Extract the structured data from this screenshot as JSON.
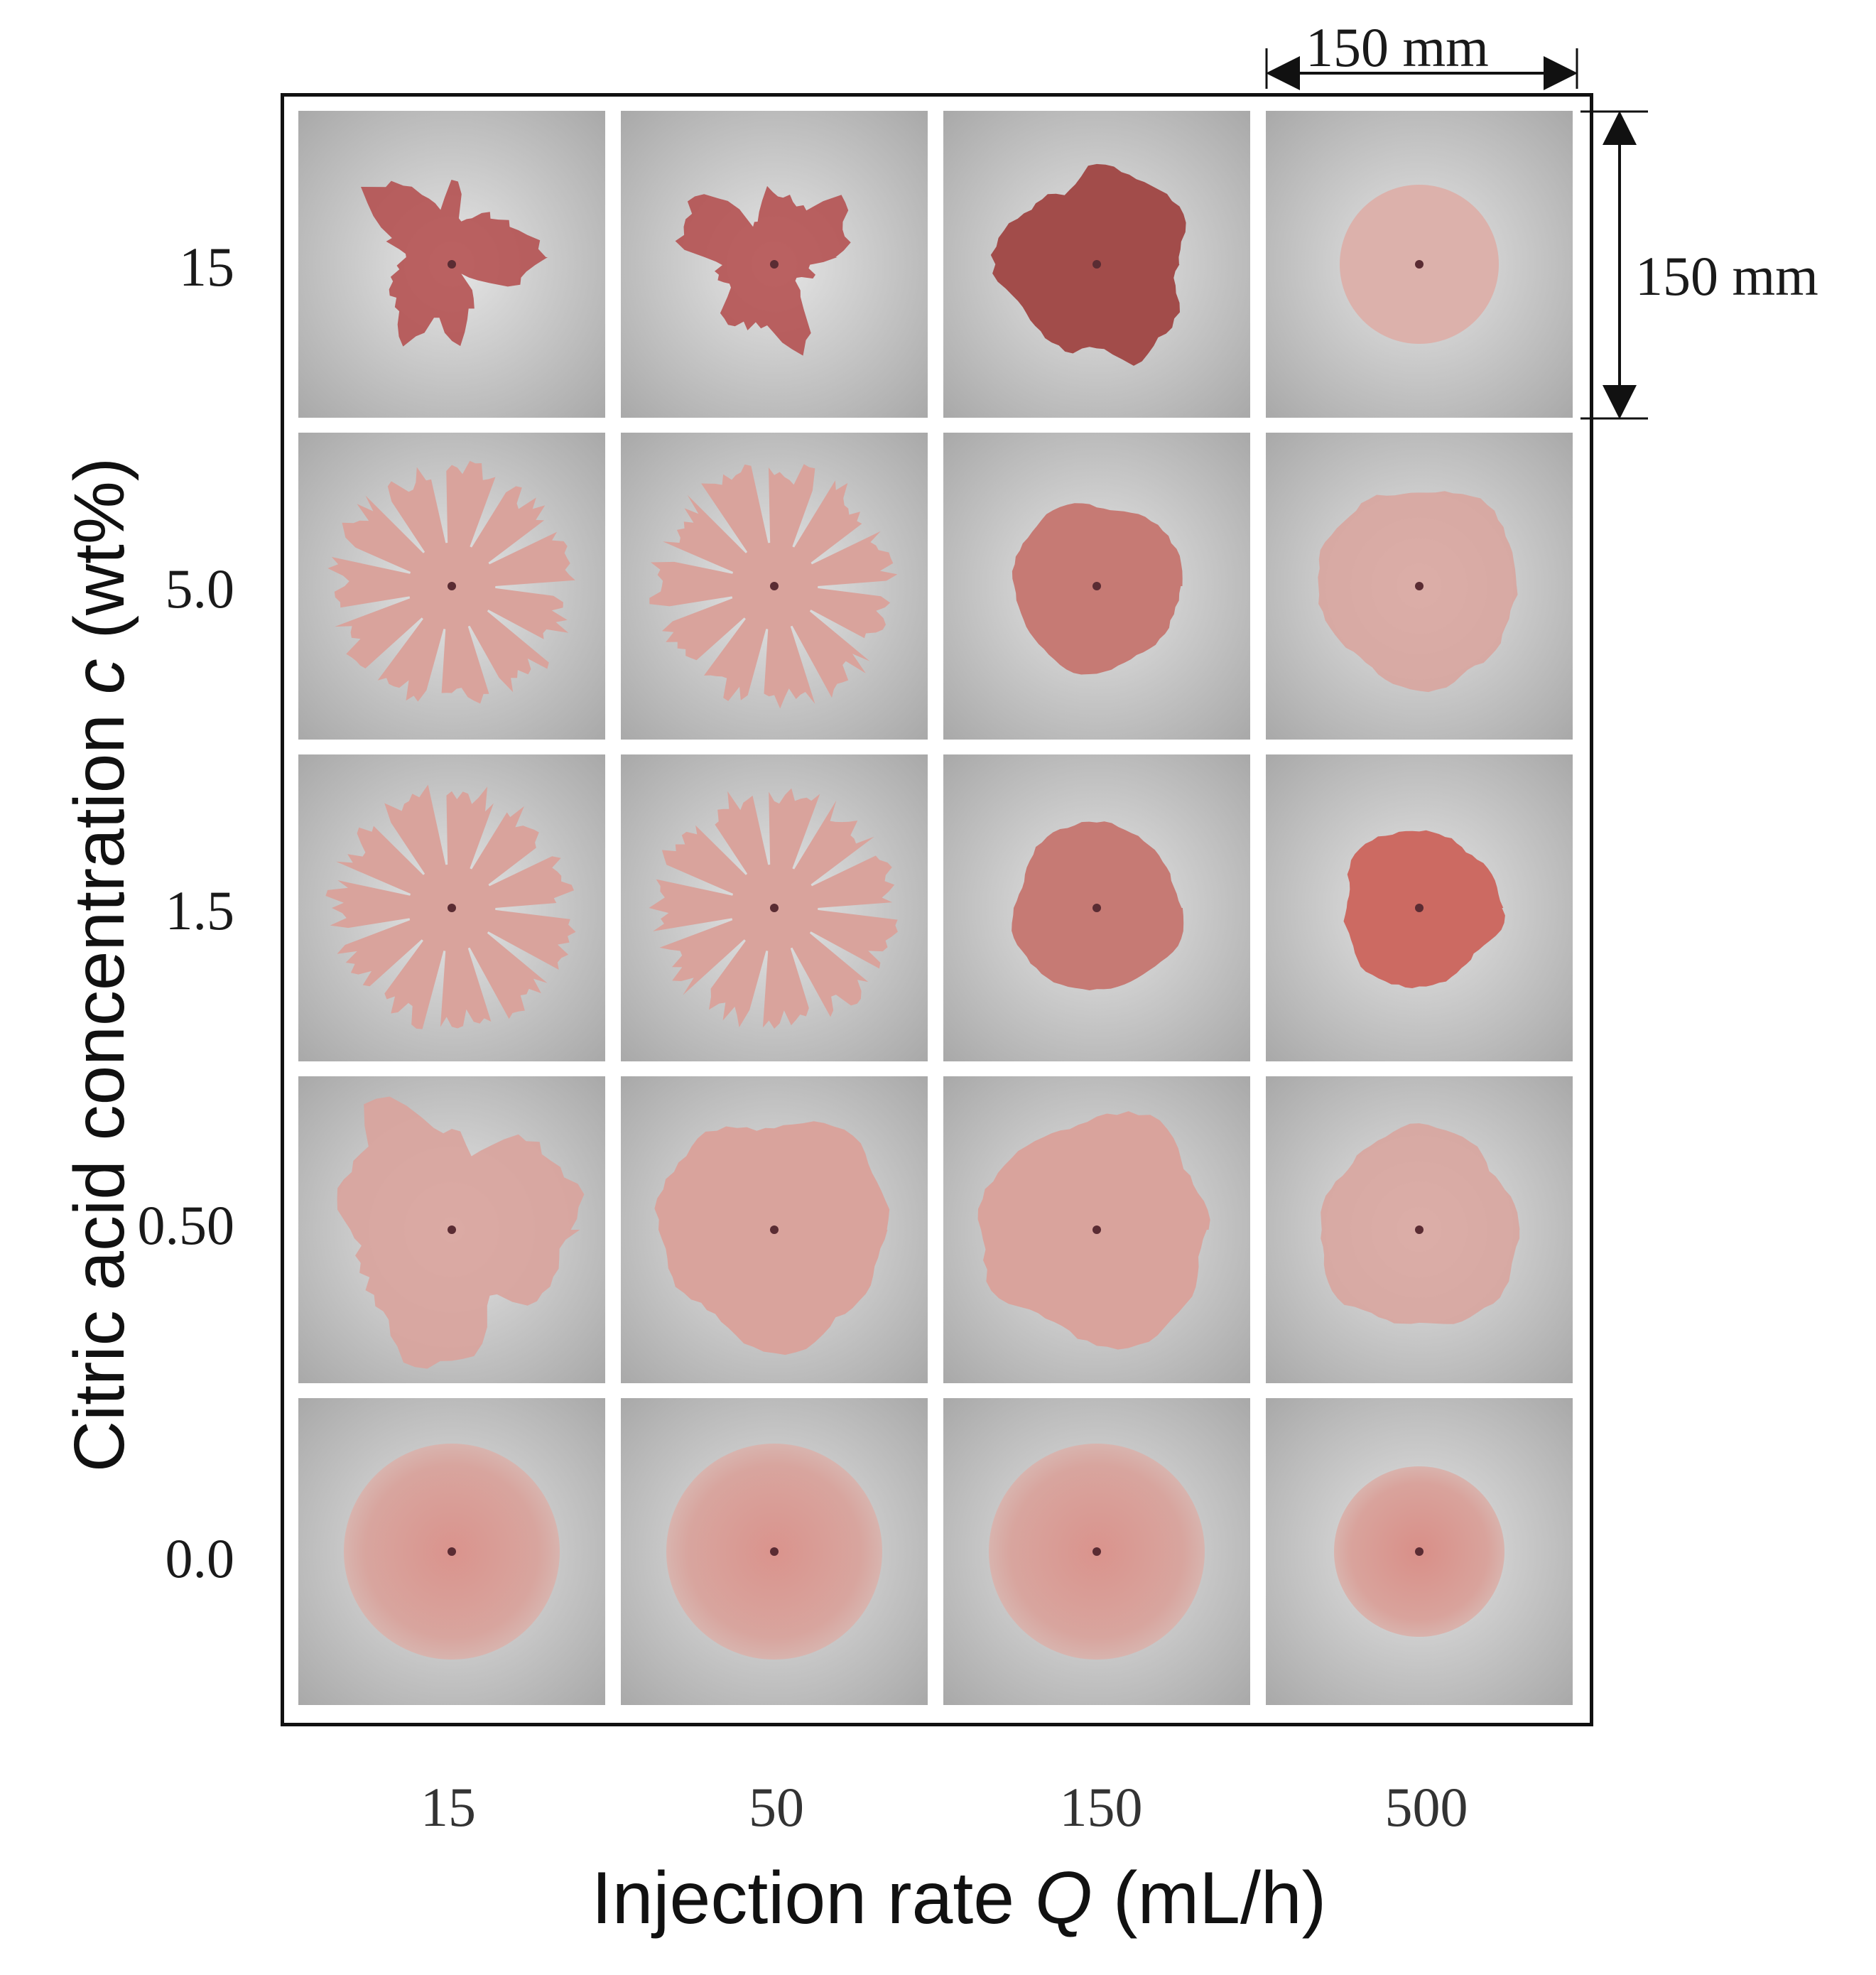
{
  "y_axis": {
    "title_prefix": "Citric acid concentration ",
    "title_var": "c",
    "title_suffix": " (wt%)"
  },
  "x_axis": {
    "title_prefix": "Injection rate ",
    "title_var": "Q",
    "title_suffix": " (mL/h)"
  },
  "rows": [
    "15",
    "5.0",
    "1.5",
    "0.50",
    "0.0"
  ],
  "cols": [
    "15",
    "50",
    "150",
    "500"
  ],
  "scale_bar": {
    "horizontal": "150 mm",
    "vertical": "150 mm"
  },
  "colors": {
    "gel": "#d9a39c",
    "gel_dark": "#b34a4a",
    "background": "#dcdcdc",
    "frame": "#111111"
  },
  "patterns": [
    [
      "fractal-dark",
      "fractal-dark",
      "dotted-disc-dark",
      "dotted-disc-light"
    ],
    [
      "fingered",
      "fingered",
      "disc-dark",
      "rough-disc-light"
    ],
    [
      "fingered",
      "fingered",
      "disc-dark",
      "rough-disc-dark"
    ],
    [
      "dendritic",
      "lobed-disc",
      "lobed-disc",
      "rough-disc-light"
    ],
    [
      "smooth-disc",
      "smooth-disc",
      "smooth-disc",
      "smooth-disc-small"
    ]
  ]
}
